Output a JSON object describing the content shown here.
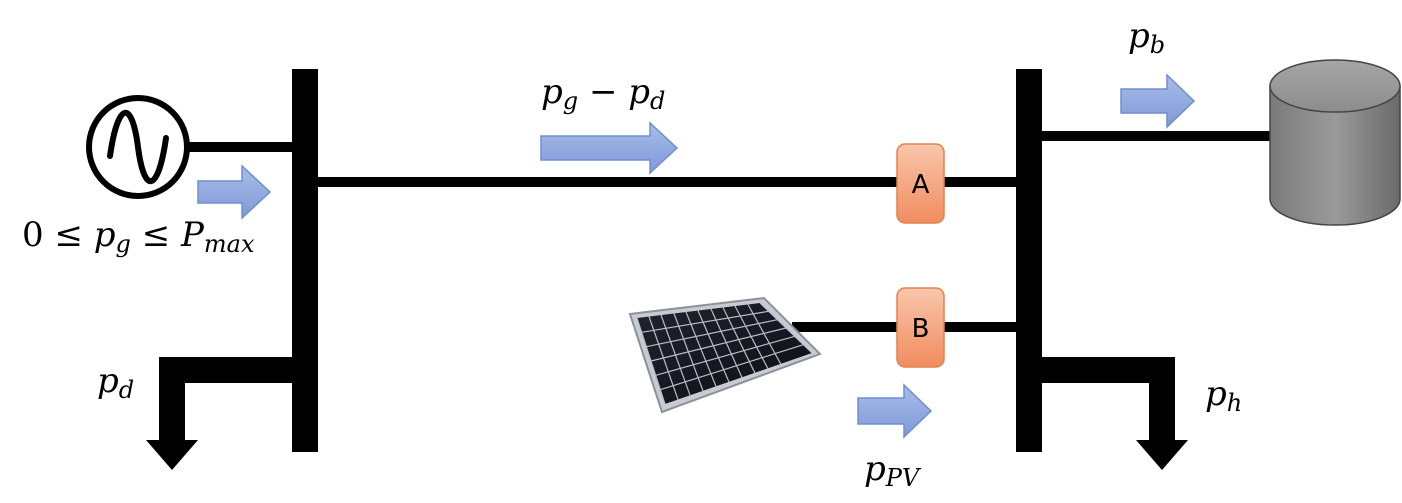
{
  "labels": {
    "p_b": {
      "base": "p",
      "sub": "b"
    },
    "p_g_minus_p_d": {
      "base1": "p",
      "sub1": "g",
      "op": " − ",
      "base2": "p",
      "sub2": "d"
    },
    "gen_constraint": {
      "left": "0 ≤ ",
      "base": "p",
      "sub": "g",
      "mid": " ≤ ",
      "base2": "P",
      "sub2": "max"
    },
    "p_d": {
      "base": "p",
      "sub": "d"
    },
    "p_h": {
      "base": "p",
      "sub": "h"
    },
    "p_pv": {
      "base": "p",
      "sub": "PV"
    }
  },
  "breakers": {
    "a": "A",
    "b": "B"
  },
  "icons": {
    "generator": "ac-generator-icon",
    "battery": "battery-cylinder-icon",
    "solar": "solar-panel-icon",
    "load": "load-arrow-icon"
  },
  "colors": {
    "line": "#000000",
    "arrow_fill": "#8ea7dd",
    "arrow_stroke": "#6f8fd0",
    "breaker_top": "#f8c0a4",
    "breaker_bottom": "#f29166",
    "breaker_stroke": "#e0824f",
    "battery": "#8a8a8a"
  }
}
